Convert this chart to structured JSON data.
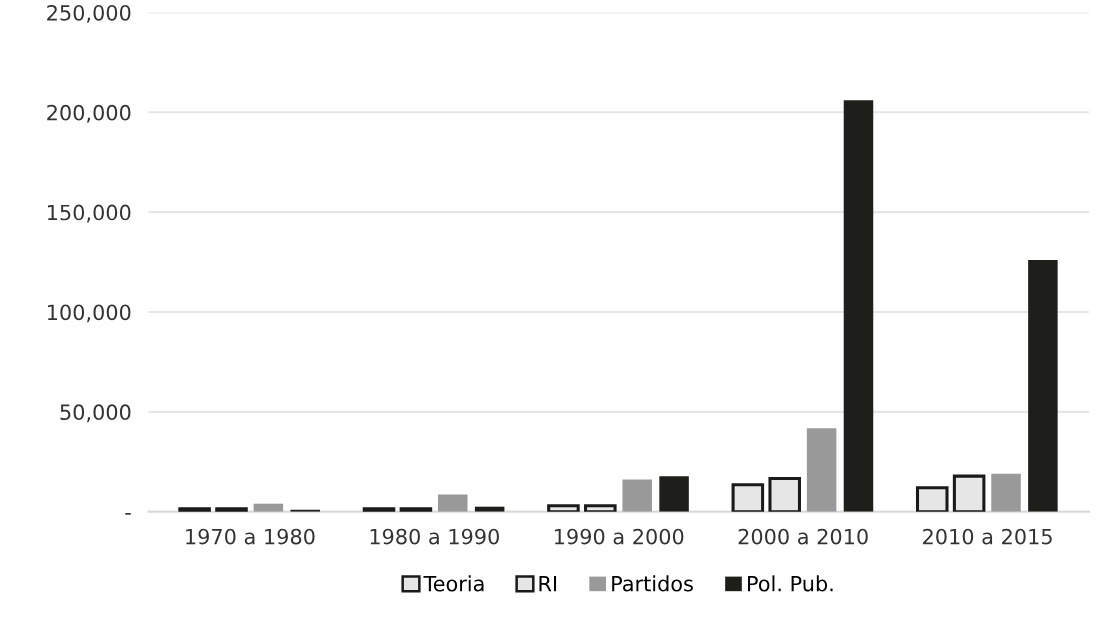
{
  "chart_data": {
    "type": "bar",
    "categories": [
      "1970 a 1980",
      "1980 a 1990",
      "1990 a 2000",
      "2000 a 2010",
      "2010 a 2015"
    ],
    "series": [
      {
        "name": "Teoria",
        "color": "#e6e6e6",
        "values": [
          1500,
          1500,
          3000,
          13500,
          12000
        ]
      },
      {
        "name": "RI",
        "color": "#e6e6e6",
        "values": [
          1500,
          1500,
          3000,
          16600,
          17800
        ]
      },
      {
        "name": "Partidos",
        "color": "#999999",
        "values": [
          4000,
          8600,
          16100,
          41800,
          19000
        ]
      },
      {
        "name": "Pol. Pub.",
        "color": "#1e1e1a",
        "values": [
          1000,
          2500,
          17700,
          206000,
          126000
        ]
      }
    ],
    "ylim": [
      0,
      250000
    ],
    "yticks": [
      {
        "value": 0,
        "label": "-"
      },
      {
        "value": 50000,
        "label": "50,000"
      },
      {
        "value": 100000,
        "label": "100,000"
      },
      {
        "value": 150000,
        "label": "150,000"
      },
      {
        "value": 200000,
        "label": "200,000"
      },
      {
        "value": 250000,
        "label": "250,000"
      }
    ],
    "grid": "y",
    "legend": "bottom"
  }
}
